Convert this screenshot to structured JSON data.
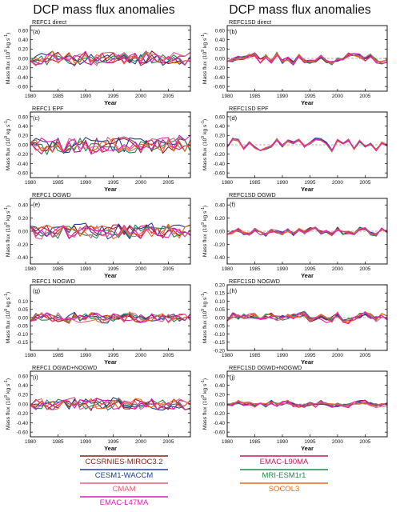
{
  "figure": {
    "left_title": "DCP mass flux anomalies",
    "right_title": "DCP mass flux anomalies",
    "ylabel": "Mass flux",
    "yunit_base": "(10",
    "yunit_exp": "9",
    "yunit_rest": " kg s",
    "yunit_inv": "-1",
    "yunit_close": ")",
    "xlabel": "Year"
  },
  "legend": [
    {
      "name": "CCSRNIES-MIROC3.2",
      "color": "#8b1a1a"
    },
    {
      "name": "EMAC-L90MA",
      "color": "#c2185b"
    },
    {
      "name": "CESM1-WACCM",
      "color": "#1f3f9a"
    },
    {
      "name": "MRI-ESM1r1",
      "color": "#1e8a4a"
    },
    {
      "name": "CMAM",
      "color": "#e0607a"
    },
    {
      "name": "SOCOL3",
      "color": "#e8681c"
    },
    {
      "name": "EMAC-L47MA",
      "color": "#e01fbf"
    }
  ],
  "chart_data": [
    {
      "type": "line",
      "panel_title": "REFC1 direct",
      "letter": "(a)",
      "x": [
        1980,
        2009
      ],
      "ylim": [
        -0.7,
        0.7
      ],
      "yticks": [
        "0.60",
        "0.40",
        "0.20",
        "0.00",
        "-0.20",
        "-0.40",
        "-0.60"
      ],
      "xticks": [
        "1980",
        "1985",
        "1990",
        "1995",
        "2000",
        "2005"
      ],
      "seed": 11,
      "amp": 0.18,
      "trend": 0.0,
      "corr": 0.3,
      "zero_dashed": false
    },
    {
      "type": "line",
      "panel_title": "REFC1SD direct",
      "letter": "(b)",
      "x": [
        1980,
        2009
      ],
      "ylim": [
        -0.7,
        0.7
      ],
      "yticks": [
        "0.60",
        "0.40",
        "0.20",
        "0.00",
        "-0.20",
        "-0.40",
        "-0.60"
      ],
      "xticks": [
        "1980",
        "1985",
        "1990",
        "1995",
        "2000",
        "2005"
      ],
      "seed": 23,
      "amp": 0.16,
      "trend": 0.0,
      "corr": 0.75,
      "zero_dashed": true
    },
    {
      "type": "line",
      "panel_title": "REFC1 EPF",
      "letter": "(c)",
      "x": [
        1980,
        2009
      ],
      "ylim": [
        -0.7,
        0.7
      ],
      "yticks": [
        "0.60",
        "0.40",
        "0.20",
        "0.00",
        "-0.20",
        "-0.40",
        "-0.60"
      ],
      "xticks": [
        "1980",
        "1985",
        "1990",
        "1995",
        "2000",
        "2005"
      ],
      "seed": 37,
      "amp": 0.2,
      "trend": 0.0,
      "corr": 0.2,
      "zero_dashed": false
    },
    {
      "type": "line",
      "panel_title": "REFC1SD EPF",
      "letter": "(d)",
      "x": [
        1980,
        2009
      ],
      "ylim": [
        -0.7,
        0.7
      ],
      "yticks": [
        "0.60",
        "0.40",
        "0.20",
        "0.00",
        "-0.20",
        "-0.40",
        "-0.60"
      ],
      "xticks": [
        "1980",
        "1985",
        "1990",
        "1995",
        "2000",
        "2005"
      ],
      "seed": 41,
      "amp": 0.15,
      "trend": 0.0,
      "corr": 0.85,
      "zero_dashed": true
    },
    {
      "type": "line",
      "panel_title": "REFC1 OGWD",
      "letter": "(e)",
      "x": [
        1980,
        2009
      ],
      "ylim": [
        -0.5,
        0.5
      ],
      "yticks": [
        "0.40",
        "0.20",
        "0.00",
        "-0.20",
        "-0.40"
      ],
      "xticks": [
        "1980",
        "1985",
        "1990",
        "1995",
        "2000",
        "2005"
      ],
      "seed": 53,
      "amp": 0.12,
      "trend": 0.0,
      "corr": 0.15,
      "zero_dashed": false
    },
    {
      "type": "line",
      "panel_title": "REFC1SD OGWD",
      "letter": "(f)",
      "x": [
        1980,
        2009
      ],
      "ylim": [
        -0.5,
        0.5
      ],
      "yticks": [
        "0.40",
        "0.20",
        "0.00",
        "-0.20",
        "-0.40"
      ],
      "xticks": [
        "1980",
        "1985",
        "1990",
        "1995",
        "2000",
        "2005"
      ],
      "seed": 67,
      "amp": 0.08,
      "trend": 0.0,
      "corr": 0.7,
      "zero_dashed": true
    },
    {
      "type": "line",
      "panel_title": "REFC1 NOGWD",
      "letter": "(g)",
      "x": [
        1980,
        2009
      ],
      "ylim": [
        -0.2,
        0.2
      ],
      "yticks": [
        "0.10",
        "0.05",
        "0.00",
        "-0.05",
        "-0.10",
        "-0.15"
      ],
      "xticks": [
        "1980",
        "1985",
        "1990",
        "1995",
        "2000",
        "2005"
      ],
      "seed": 79,
      "amp": 0.035,
      "trend": 0.0,
      "corr": 0.25,
      "zero_dashed": false
    },
    {
      "type": "line",
      "panel_title": "REFC1SD NOGWD",
      "letter": "(h)",
      "x": [
        1980,
        2009
      ],
      "ylim": [
        -0.2,
        0.2
      ],
      "yticks": [
        "0.20",
        "0.15",
        "0.10",
        "0.05",
        "0.00",
        "-0.05",
        "-0.10",
        "-0.15",
        "-0.20"
      ],
      "xticks": [
        "1980",
        "1985",
        "1990",
        "1995",
        "2000",
        "2005"
      ],
      "seed": 83,
      "amp": 0.04,
      "trend": 0.0,
      "corr": 0.6,
      "zero_dashed": true
    },
    {
      "type": "line",
      "panel_title": "REFC1 OGWD+NOGWD",
      "letter": "(i)",
      "x": [
        1980,
        2009
      ],
      "ylim": [
        -0.7,
        0.7
      ],
      "yticks": [
        "0.60",
        "0.40",
        "0.20",
        "0.00",
        "-0.20",
        "-0.40",
        "-0.60"
      ],
      "xticks": [
        "1980",
        "1985",
        "1990",
        "1995",
        "2000",
        "2005"
      ],
      "seed": 97,
      "amp": 0.14,
      "trend": 0.0,
      "corr": 0.15,
      "zero_dashed": false
    },
    {
      "type": "line",
      "panel_title": "REFC1SD OGWD+NOGWD",
      "letter": "(j)",
      "x": [
        1980,
        2009
      ],
      "ylim": [
        -0.7,
        0.7
      ],
      "yticks": [
        "0.60",
        "0.40",
        "0.20",
        "0.00",
        "-0.20",
        "-0.40",
        "-0.60"
      ],
      "xticks": [
        "1980",
        "1985",
        "1990",
        "1995",
        "2000",
        "2005"
      ],
      "seed": 101,
      "amp": 0.09,
      "trend": 0.0,
      "corr": 0.55,
      "zero_dashed": true
    }
  ]
}
